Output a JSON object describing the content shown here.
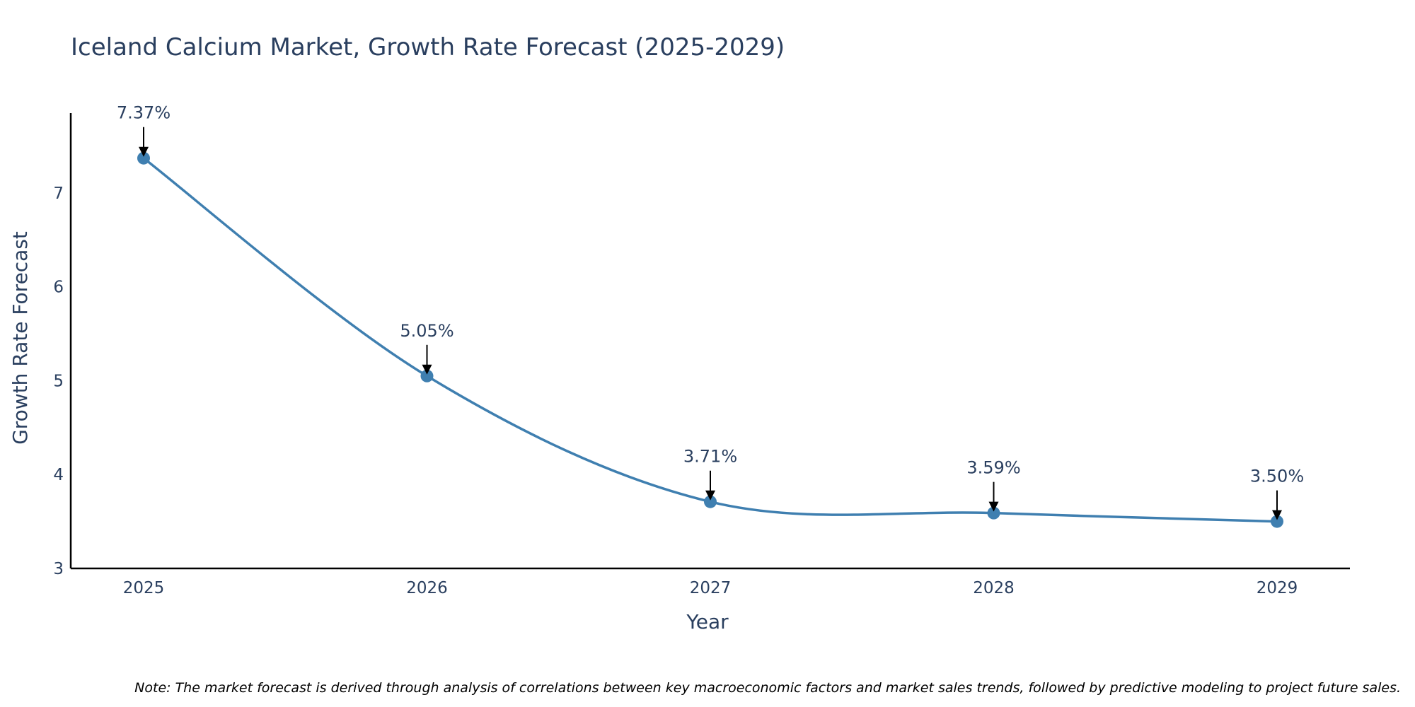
{
  "chart_data": {
    "type": "line",
    "title": "Iceland Calcium Market, Growth Rate Forecast (2025-2029)",
    "xlabel": "Year",
    "ylabel": "Growth Rate Forecast",
    "categories": [
      "2025",
      "2026",
      "2027",
      "2028",
      "2029"
    ],
    "series": [
      {
        "name": "Growth Rate Forecast",
        "values": [
          7.37,
          5.05,
          3.71,
          3.59,
          3.5
        ],
        "labels": [
          "7.37%",
          "5.05%",
          "3.71%",
          "3.59%",
          "3.50%"
        ]
      }
    ],
    "ylim": [
      3,
      7.85
    ],
    "yticks": [
      3,
      4,
      5,
      6,
      7
    ],
    "xticks": [
      "2025",
      "2026",
      "2027",
      "2028",
      "2029"
    ],
    "grid": false,
    "line_shape": "spline",
    "colors": {
      "line": "#3f7fb0",
      "marker": "#3f7fb0",
      "axis": "#000000",
      "text": "#2a3f5f",
      "arrow": "#000000"
    }
  },
  "note": "Note: The market forecast is derived through analysis of correlations between key macroeconomic factors and market sales trends, followed by predictive modeling to project future sales."
}
